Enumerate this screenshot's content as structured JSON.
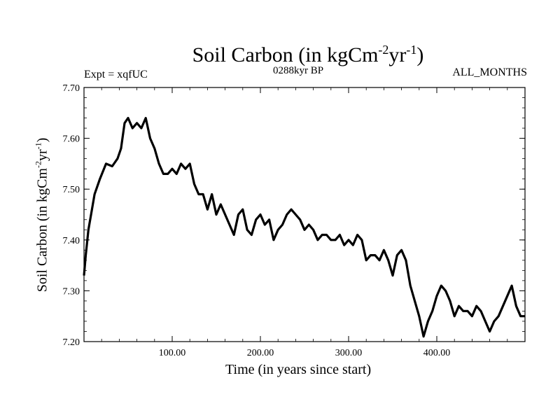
{
  "chart_data": {
    "type": "line",
    "title": "Soil Carbon (in kgCm",
    "title_exp1": "-2",
    "title_mid": "yr",
    "title_exp2": "-1",
    "title_end": ")",
    "experiment": "Expt = xqfUC",
    "period": "0288kyr BP",
    "months": "ALL_MONTHS",
    "xlabel": "Time (in years since start)",
    "ylabel": "Soil Carbon (in kgCm",
    "ylabel_exp1": "-2",
    "ylabel_mid": "yr",
    "ylabel_exp2": "-1",
    "ylabel_end": ")",
    "xlim": [
      0,
      500
    ],
    "ylim": [
      7.2,
      7.7
    ],
    "xticks": [
      100,
      200,
      300,
      400
    ],
    "xtick_labels": [
      "100.00",
      "200.00",
      "300.00",
      "400.00"
    ],
    "yticks": [
      7.2,
      7.3,
      7.4,
      7.5,
      7.6,
      7.7
    ],
    "ytick_labels": [
      "7.20",
      "7.30",
      "7.40",
      "7.50",
      "7.60",
      "7.70"
    ],
    "line_color": "#000000",
    "series": [
      {
        "name": "Soil Carbon",
        "x": [
          0,
          2,
          5,
          8,
          12,
          18,
          25,
          32,
          38,
          42,
          46,
          50,
          55,
          60,
          65,
          70,
          75,
          80,
          85,
          90,
          95,
          100,
          105,
          110,
          115,
          120,
          125,
          130,
          135,
          140,
          145,
          150,
          155,
          160,
          165,
          170,
          175,
          180,
          185,
          190,
          195,
          200,
          205,
          210,
          215,
          220,
          225,
          230,
          235,
          240,
          245,
          250,
          255,
          260,
          265,
          270,
          275,
          280,
          285,
          290,
          295,
          300,
          305,
          310,
          315,
          320,
          325,
          330,
          335,
          340,
          345,
          350,
          355,
          360,
          365,
          370,
          375,
          380,
          385,
          390,
          395,
          400,
          405,
          410,
          415,
          420,
          425,
          430,
          435,
          440,
          445,
          450,
          455,
          460,
          465,
          470,
          475,
          480,
          485,
          490,
          495,
          500
        ],
        "y": [
          7.33,
          7.37,
          7.42,
          7.45,
          7.49,
          7.52,
          7.55,
          7.545,
          7.56,
          7.58,
          7.63,
          7.64,
          7.62,
          7.63,
          7.62,
          7.64,
          7.6,
          7.58,
          7.55,
          7.53,
          7.53,
          7.54,
          7.53,
          7.55,
          7.54,
          7.55,
          7.51,
          7.49,
          7.49,
          7.46,
          7.49,
          7.45,
          7.47,
          7.45,
          7.43,
          7.41,
          7.45,
          7.46,
          7.42,
          7.41,
          7.44,
          7.45,
          7.43,
          7.44,
          7.4,
          7.42,
          7.43,
          7.45,
          7.46,
          7.45,
          7.44,
          7.42,
          7.43,
          7.42,
          7.4,
          7.41,
          7.41,
          7.4,
          7.4,
          7.41,
          7.39,
          7.4,
          7.39,
          7.41,
          7.4,
          7.36,
          7.37,
          7.37,
          7.36,
          7.38,
          7.36,
          7.33,
          7.37,
          7.38,
          7.36,
          7.31,
          7.28,
          7.25,
          7.21,
          7.24,
          7.26,
          7.29,
          7.31,
          7.3,
          7.28,
          7.25,
          7.27,
          7.26,
          7.26,
          7.25,
          7.27,
          7.26,
          7.24,
          7.22,
          7.24,
          7.25,
          7.27,
          7.29,
          7.31,
          7.27,
          7.25,
          7.25
        ]
      }
    ]
  }
}
